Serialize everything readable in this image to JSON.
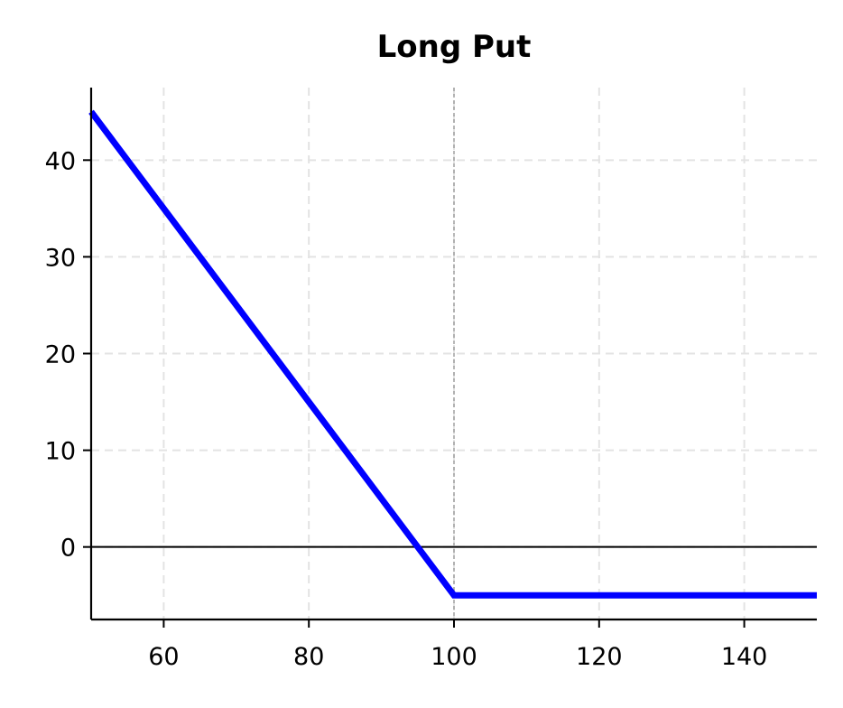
{
  "chart_data": {
    "type": "line",
    "title": "Long Put",
    "xlabel": "",
    "ylabel": "",
    "xlim": [
      50,
      150
    ],
    "ylim": [
      -7.5,
      47.5
    ],
    "x_ticks": [
      60,
      80,
      100,
      120,
      140
    ],
    "y_ticks": [
      0,
      10,
      20,
      30,
      40
    ],
    "grid": true,
    "strike": 100,
    "zero_line": 0,
    "series": [
      {
        "x": [
          50,
          95,
          100,
          150
        ],
        "values": [
          45,
          0,
          -5,
          -5
        ],
        "color": "#0000ff"
      }
    ],
    "fills": {
      "profit_color": "#b2d8b2",
      "loss_color": "#ffb2b2"
    },
    "colors": {
      "line": "#0000ff",
      "grid": "#e3e3e3",
      "strike_line": "#a0a0a0",
      "axis": "#000000"
    }
  }
}
